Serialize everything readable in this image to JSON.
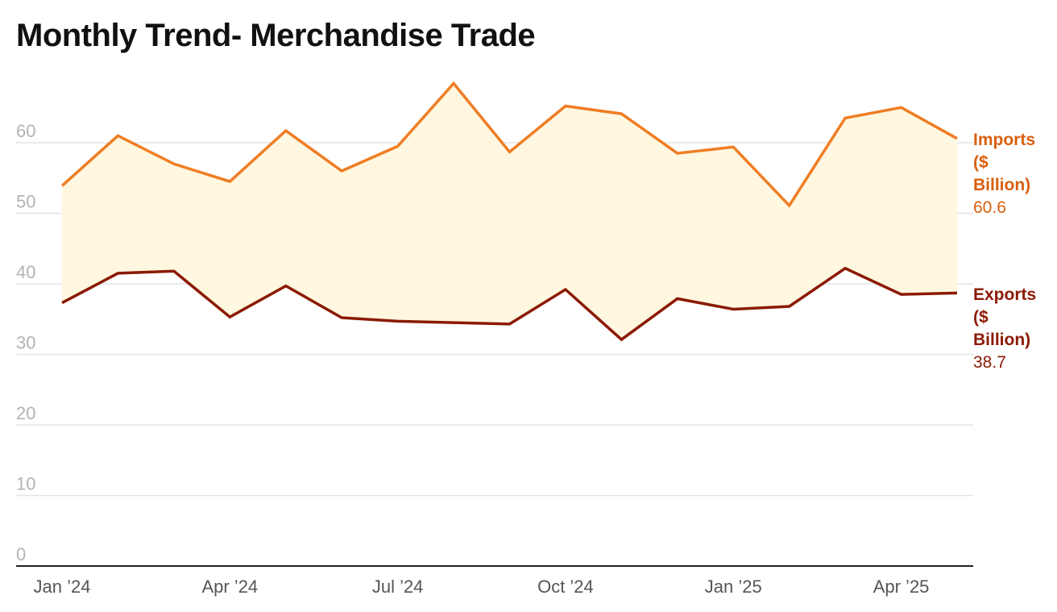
{
  "title": "Monthly Trend- Merchandise Trade",
  "chart_data": {
    "type": "line",
    "title": "Monthly Trend- Merchandise Trade",
    "x": [
      "Jan 2024",
      "Feb 2024",
      "Mar 2024",
      "Apr 2024",
      "May 2024",
      "Jun 2024",
      "Jul 2024",
      "Aug 2024",
      "Sep 2024",
      "Oct 2024",
      "Nov 2024",
      "Dec 2024",
      "Jan 2025",
      "Feb 2025",
      "Mar 2025",
      "Apr 2025",
      "May 2025"
    ],
    "x_tick_labels": [
      "Jan ’24",
      "Apr ’24",
      "Jul ’24",
      "Oct ’24",
      "Jan ’25",
      "Apr ’25"
    ],
    "x_tick_indices": [
      0,
      3,
      6,
      9,
      12,
      15
    ],
    "y_ticks": [
      0,
      10,
      20,
      30,
      40,
      50,
      60
    ],
    "ylim": [
      0,
      70
    ],
    "grid": true,
    "band_fill_between_series": true,
    "series": [
      {
        "name": "Imports ($ Billion)",
        "label_lines": [
          "Imports",
          "($",
          "Billion)"
        ],
        "last_value_label": "60.6",
        "color": "#f07d24",
        "label_color": "#d95f0e",
        "values": [
          53.9,
          61.0,
          57.0,
          54.5,
          61.7,
          56.0,
          59.5,
          68.4,
          58.7,
          65.2,
          64.1,
          58.5,
          59.4,
          51.1,
          63.5,
          65.0,
          60.6
        ]
      },
      {
        "name": "Exports ($ Billion)",
        "label_lines": [
          "Exports",
          "($",
          "Billion)"
        ],
        "last_value_label": "38.7",
        "color": "#8b1a04",
        "label_color": "#8b1a04",
        "values": [
          37.3,
          41.5,
          41.8,
          35.3,
          39.7,
          35.2,
          34.7,
          34.5,
          34.3,
          39.2,
          32.1,
          37.9,
          36.4,
          36.8,
          42.2,
          38.5,
          38.7
        ]
      }
    ],
    "band_color": "#fff7df",
    "gridline_color": "#e3e3e3",
    "axis_color": "#222222"
  }
}
